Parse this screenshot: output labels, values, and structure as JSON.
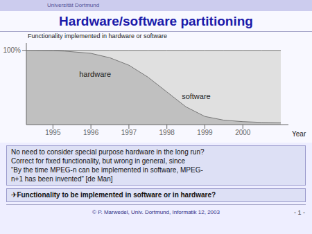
{
  "chart_data": {
    "type": "area",
    "title": "Hardware/software partitioning",
    "header": "Universität Dortmund",
    "x": [
      1994.3,
      1995,
      1995.3,
      1996,
      1996.5,
      1997,
      1997.5,
      1998,
      1998.5,
      1999,
      1999.5,
      2000,
      2000.5,
      2001.0
    ],
    "series": [
      {
        "name": "hardware",
        "color": "#c0c0c0",
        "values": [
          100,
          99.5,
          99,
          96,
          90,
          80,
          64,
          44,
          24,
          11,
          6,
          4,
          3,
          2.5
        ]
      },
      {
        "name": "software",
        "color": "#e0e0e0",
        "values": [
          100,
          100,
          100,
          100,
          100,
          100,
          100,
          100,
          100,
          100,
          100,
          100,
          100,
          100
        ]
      }
    ],
    "xlim": [
      1994.3,
      2001.2
    ],
    "ylim": [
      0,
      110
    ],
    "xticks": [
      1995,
      1996,
      1997,
      1998,
      1999,
      2000
    ],
    "yticks": [
      {
        "value": 100,
        "label": "100%"
      }
    ],
    "xlabel": "Year",
    "ylabel": "Functionality implemented in hardware or software",
    "annotations": [
      {
        "text": "hardware",
        "x": 1995.6,
        "y": 68
      },
      {
        "text": "software",
        "x": 1998.3,
        "y": 38
      }
    ],
    "notes": [
      "No need to consider special purpose hardware in the long run?",
      "Correct for fixed functionality, but wrong in general, since",
      "“By the time MPEG-n can be implemented in software, MPEG-",
      "n+1 has been invented” [de Man]"
    ],
    "callout": "✈Functionality to be implemented in software or in hardware?",
    "footer": "© P. Marwedel, Univ. Dortmund, Informatik 12, 2003",
    "page": "- 1 -",
    "grid": false
  }
}
